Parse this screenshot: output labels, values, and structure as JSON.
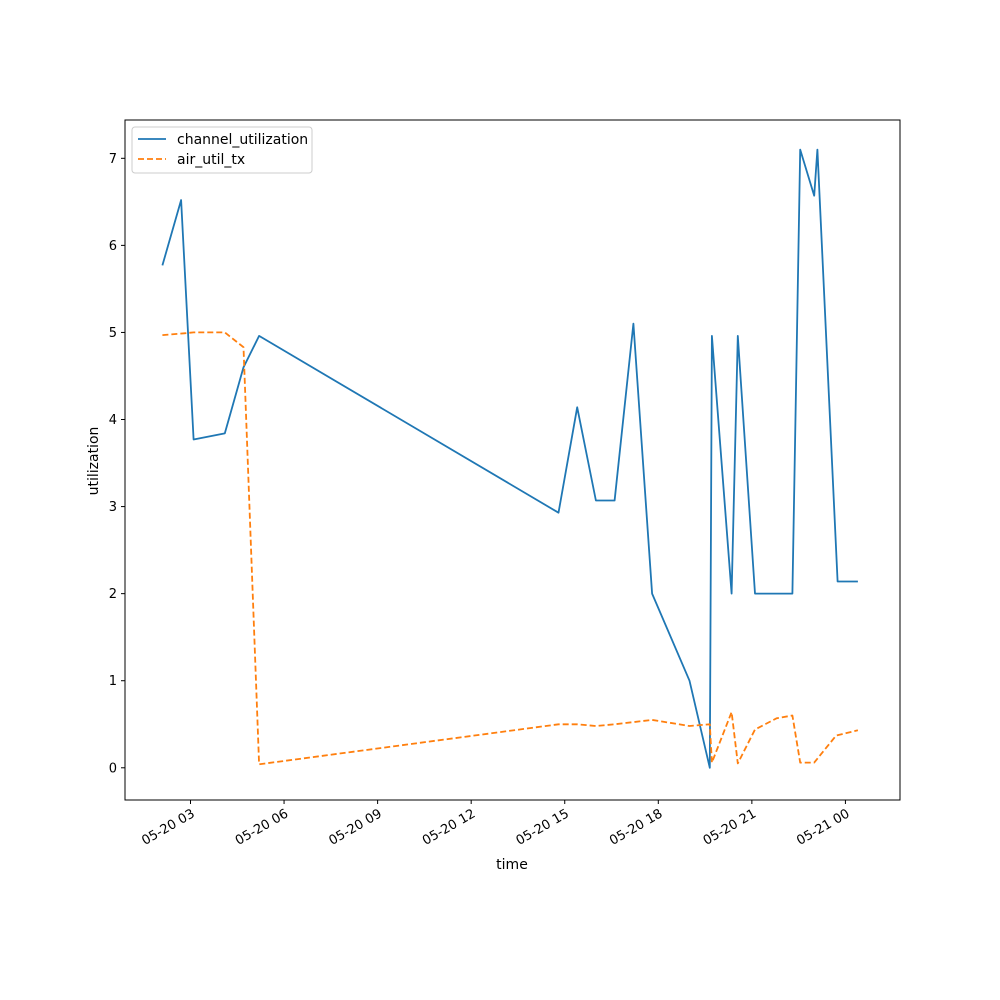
{
  "chart_data": {
    "type": "line",
    "xlabel": "time",
    "ylabel": "utilization",
    "x_ticks": [
      {
        "label": "05-20 03",
        "hour": 3
      },
      {
        "label": "05-20 06",
        "hour": 6
      },
      {
        "label": "05-20 09",
        "hour": 9
      },
      {
        "label": "05-20 12",
        "hour": 12
      },
      {
        "label": "05-20 15",
        "hour": 15
      },
      {
        "label": "05-20 18",
        "hour": 18
      },
      {
        "label": "05-20 21",
        "hour": 21
      },
      {
        "label": "05-21 00",
        "hour": 24
      }
    ],
    "y_ticks": [
      0,
      1,
      2,
      3,
      4,
      5,
      6,
      7
    ],
    "xlim_hours": [
      0.9,
      25.75
    ],
    "ylim": [
      -0.37,
      7.44
    ],
    "grid": false,
    "legend_position": "top-left",
    "series": [
      {
        "name": "channel_utilization",
        "color": "#1f77b4",
        "style": "solid",
        "points": [
          [
            2.1,
            5.77
          ],
          [
            2.7,
            6.52
          ],
          [
            3.1,
            3.77
          ],
          [
            4.1,
            3.84
          ],
          [
            4.7,
            4.6
          ],
          [
            5.2,
            4.96
          ],
          [
            14.8,
            2.93
          ],
          [
            15.4,
            4.14
          ],
          [
            16.0,
            3.07
          ],
          [
            16.6,
            3.07
          ],
          [
            17.2,
            5.1
          ],
          [
            17.8,
            2.0
          ],
          [
            19.0,
            1.0
          ],
          [
            19.65,
            0.0
          ],
          [
            19.72,
            4.96
          ],
          [
            20.35,
            2.0
          ],
          [
            20.55,
            4.96
          ],
          [
            21.1,
            2.0
          ],
          [
            22.3,
            2.0
          ],
          [
            22.55,
            7.1
          ],
          [
            23.0,
            6.57
          ],
          [
            23.1,
            7.1
          ],
          [
            23.75,
            2.14
          ],
          [
            24.4,
            2.14
          ]
        ]
      },
      {
        "name": "air_util_tx",
        "color": "#ff7f0e",
        "style": "dashed",
        "points": [
          [
            2.1,
            4.97
          ],
          [
            2.8,
            4.99
          ],
          [
            3.1,
            5.0
          ],
          [
            4.1,
            5.0
          ],
          [
            4.7,
            4.83
          ],
          [
            5.2,
            0.04
          ],
          [
            14.8,
            0.5
          ],
          [
            15.4,
            0.5
          ],
          [
            16.0,
            0.48
          ],
          [
            16.6,
            0.5
          ],
          [
            17.8,
            0.55
          ],
          [
            19.0,
            0.48
          ],
          [
            19.65,
            0.5
          ],
          [
            19.72,
            0.06
          ],
          [
            20.35,
            0.64
          ],
          [
            20.55,
            0.05
          ],
          [
            21.1,
            0.44
          ],
          [
            21.8,
            0.57
          ],
          [
            22.3,
            0.6
          ],
          [
            22.55,
            0.06
          ],
          [
            23.0,
            0.06
          ],
          [
            23.7,
            0.37
          ],
          [
            24.4,
            0.43
          ]
        ]
      }
    ]
  }
}
